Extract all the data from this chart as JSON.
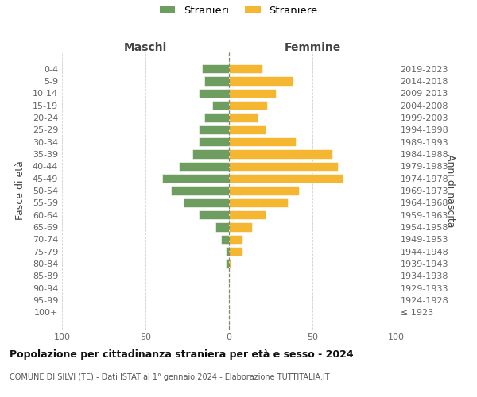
{
  "age_groups": [
    "100+",
    "95-99",
    "90-94",
    "85-89",
    "80-84",
    "75-79",
    "70-74",
    "65-69",
    "60-64",
    "55-59",
    "50-54",
    "45-49",
    "40-44",
    "35-39",
    "30-34",
    "25-29",
    "20-24",
    "15-19",
    "10-14",
    "5-9",
    "0-4"
  ],
  "birth_years": [
    "≤ 1923",
    "1924-1928",
    "1929-1933",
    "1934-1938",
    "1939-1943",
    "1944-1948",
    "1949-1953",
    "1954-1958",
    "1959-1963",
    "1964-1968",
    "1969-1973",
    "1974-1978",
    "1979-1983",
    "1984-1988",
    "1989-1993",
    "1994-1998",
    "1999-2003",
    "2004-2008",
    "2009-2013",
    "2014-2018",
    "2019-2023"
  ],
  "maschi": [
    0,
    0,
    0,
    0,
    2,
    2,
    5,
    8,
    18,
    27,
    35,
    40,
    30,
    22,
    18,
    18,
    15,
    10,
    18,
    15,
    16
  ],
  "femmine": [
    0,
    0,
    0,
    0,
    1,
    8,
    8,
    14,
    22,
    35,
    42,
    68,
    65,
    62,
    40,
    22,
    17,
    23,
    28,
    38,
    20
  ],
  "color_maschi": "#6e9e5f",
  "color_femmine": "#f5b731",
  "title": "Popolazione per cittadinanza straniera per età e sesso - 2024",
  "subtitle": "COMUNE DI SILVI (TE) - Dati ISTAT al 1° gennaio 2024 - Elaborazione TUTTITALIA.IT",
  "header_left": "Maschi",
  "header_right": "Femmine",
  "ylabel_left": "Fasce di età",
  "ylabel_right": "Anni di nascita",
  "legend_maschi": "Stranieri",
  "legend_femmine": "Straniere",
  "xlim": 100,
  "background_color": "#ffffff",
  "grid_color": "#d0d0d0"
}
